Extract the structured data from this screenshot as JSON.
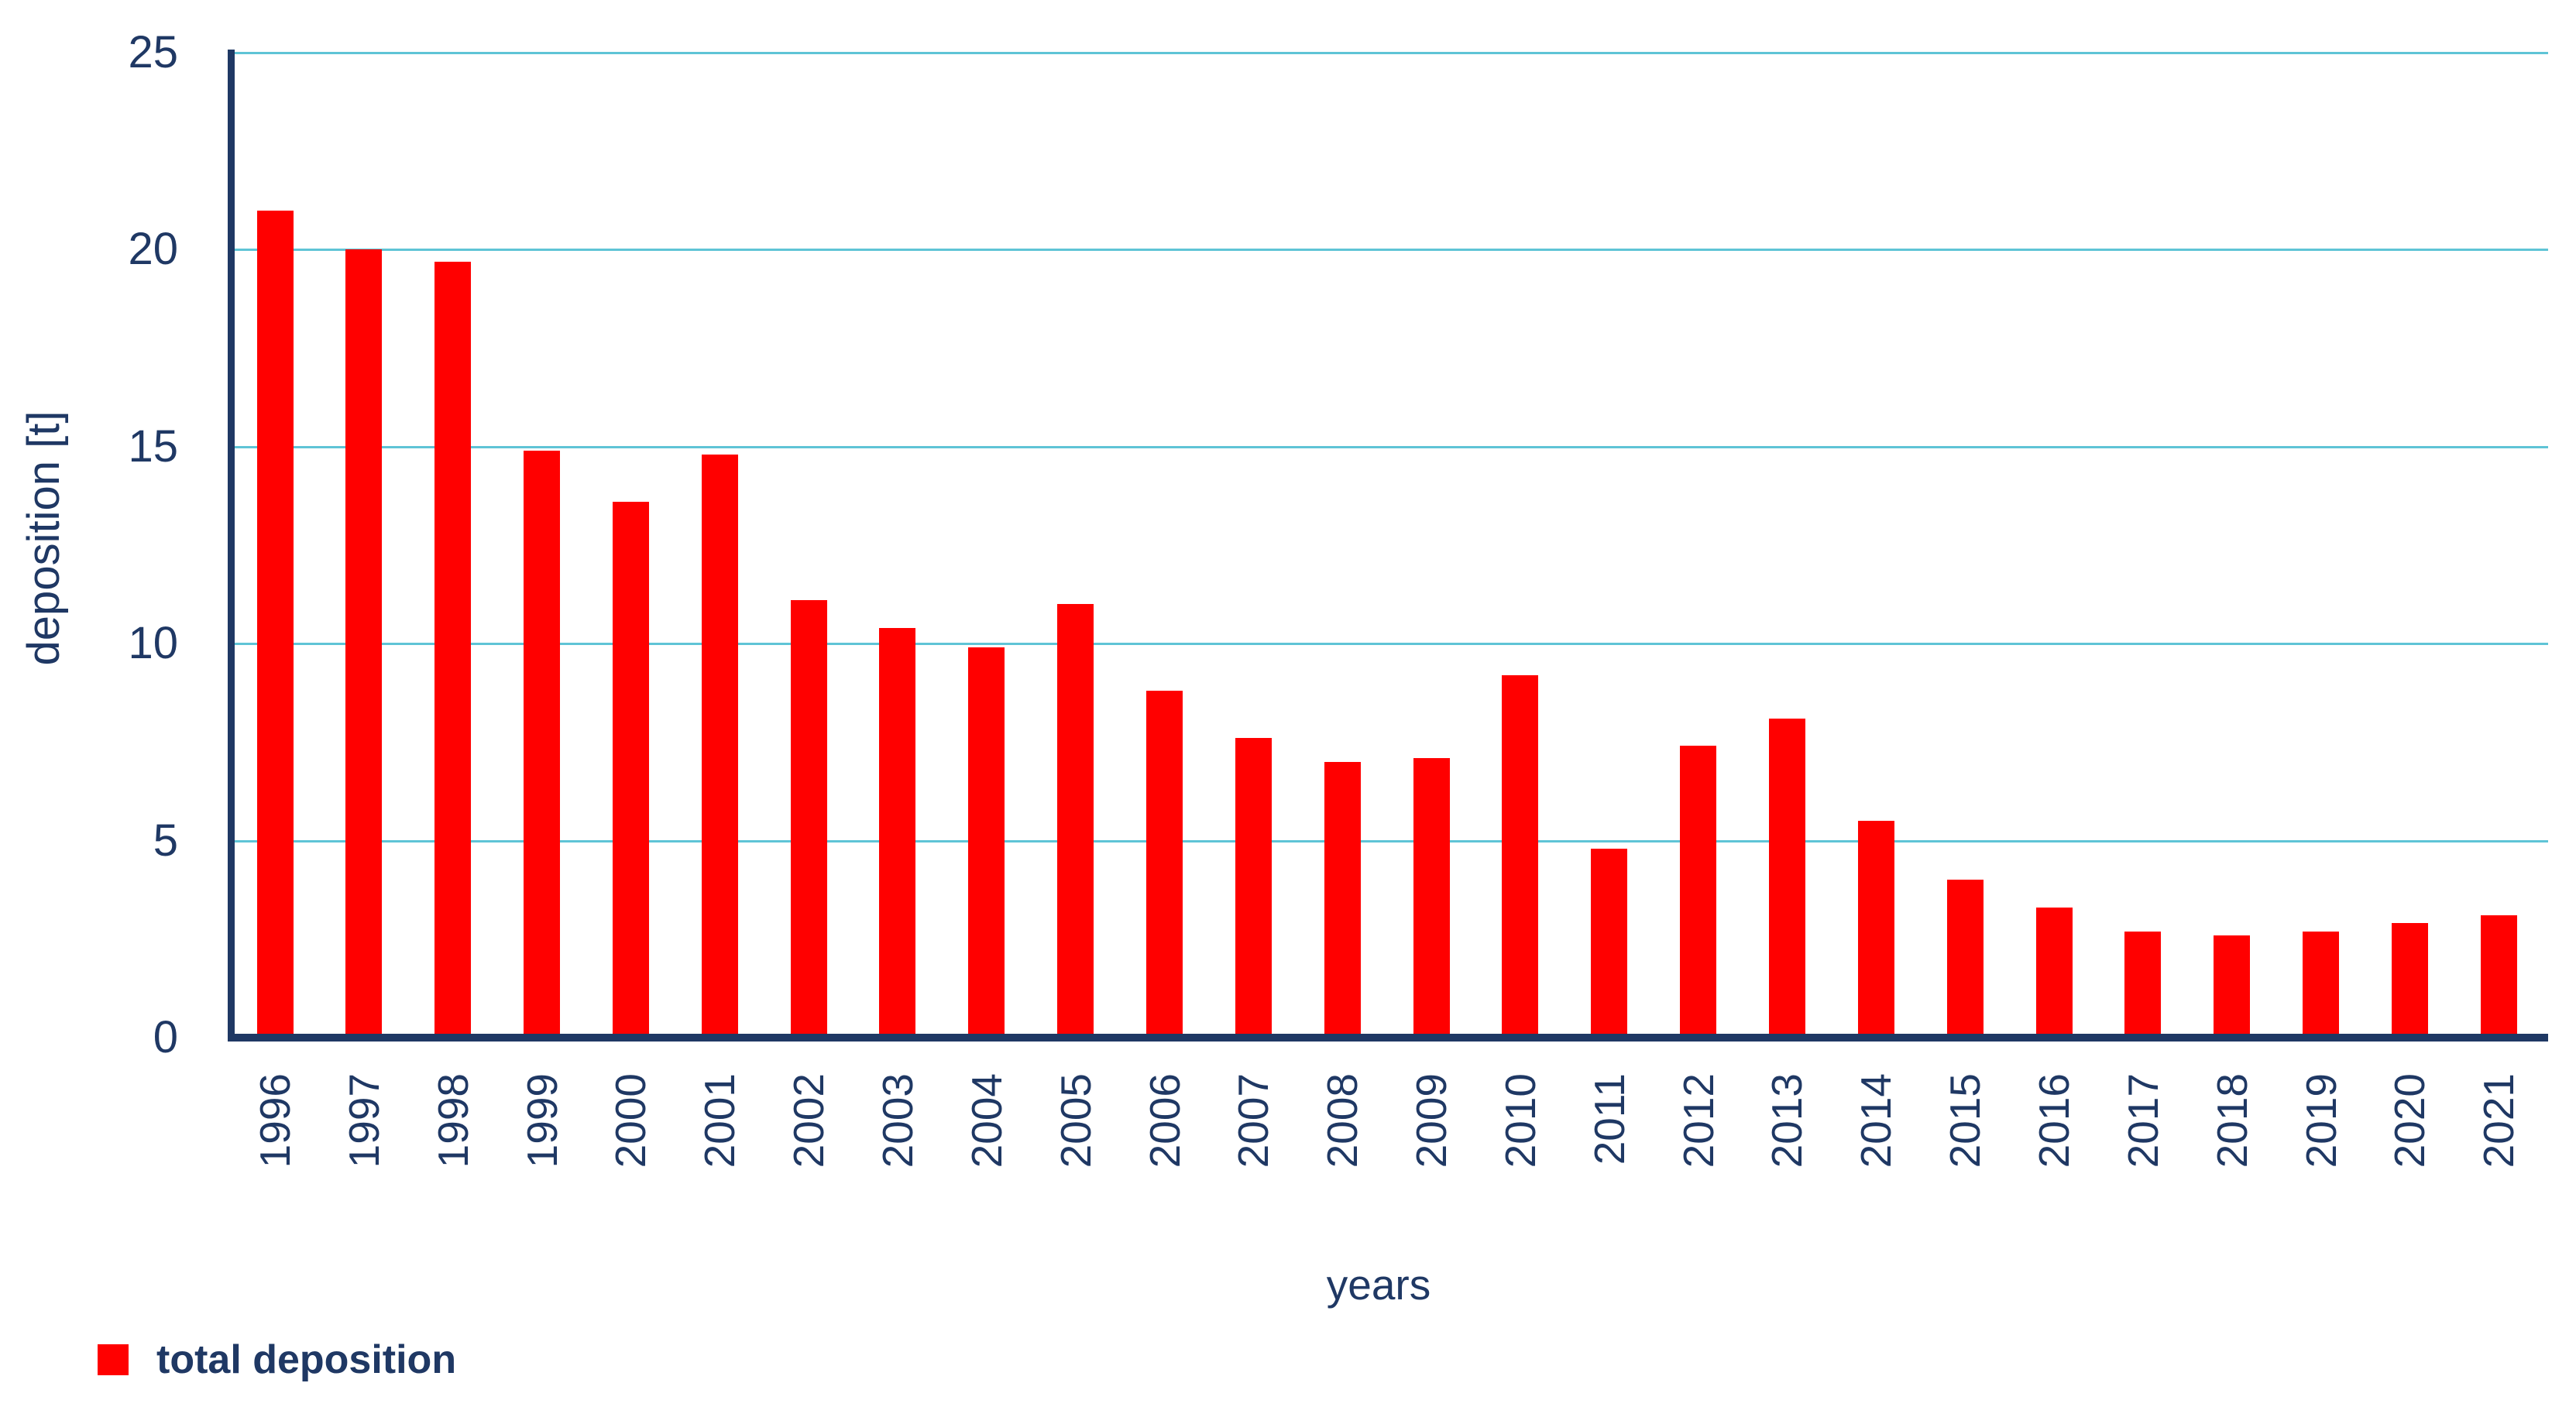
{
  "chart_data": {
    "type": "bar",
    "title": "",
    "categories": [
      "1996",
      "1997",
      "1998",
      "1999",
      "2000",
      "2001",
      "2002",
      "2003",
      "2004",
      "2005",
      "2006",
      "2007",
      "2008",
      "2009",
      "2010",
      "2011",
      "2012",
      "2013",
      "2014",
      "2015",
      "2016",
      "2017",
      "2018",
      "2019",
      "2020",
      "2021"
    ],
    "series": [
      {
        "name": "total deposition",
        "values": [
          21.0,
          20.0,
          19.7,
          14.9,
          13.6,
          14.8,
          11.1,
          10.4,
          9.9,
          11.0,
          8.8,
          7.6,
          7.0,
          7.1,
          9.2,
          4.8,
          7.4,
          8.1,
          5.5,
          4.0,
          3.3,
          2.7,
          2.6,
          2.7,
          2.9,
          3.1
        ]
      }
    ],
    "xlabel": "years",
    "ylabel": "deposition [t]",
    "ylim": [
      0,
      25
    ],
    "yticks": [
      0,
      5,
      10,
      15,
      20,
      25
    ],
    "grid": true,
    "legend_position": "bottom-left",
    "colors": {
      "bar": "#FF0000",
      "axis": "#1F3864",
      "text": "#1F3864",
      "gridline": "#5FC4D6",
      "background": "#FFFFFF"
    }
  }
}
